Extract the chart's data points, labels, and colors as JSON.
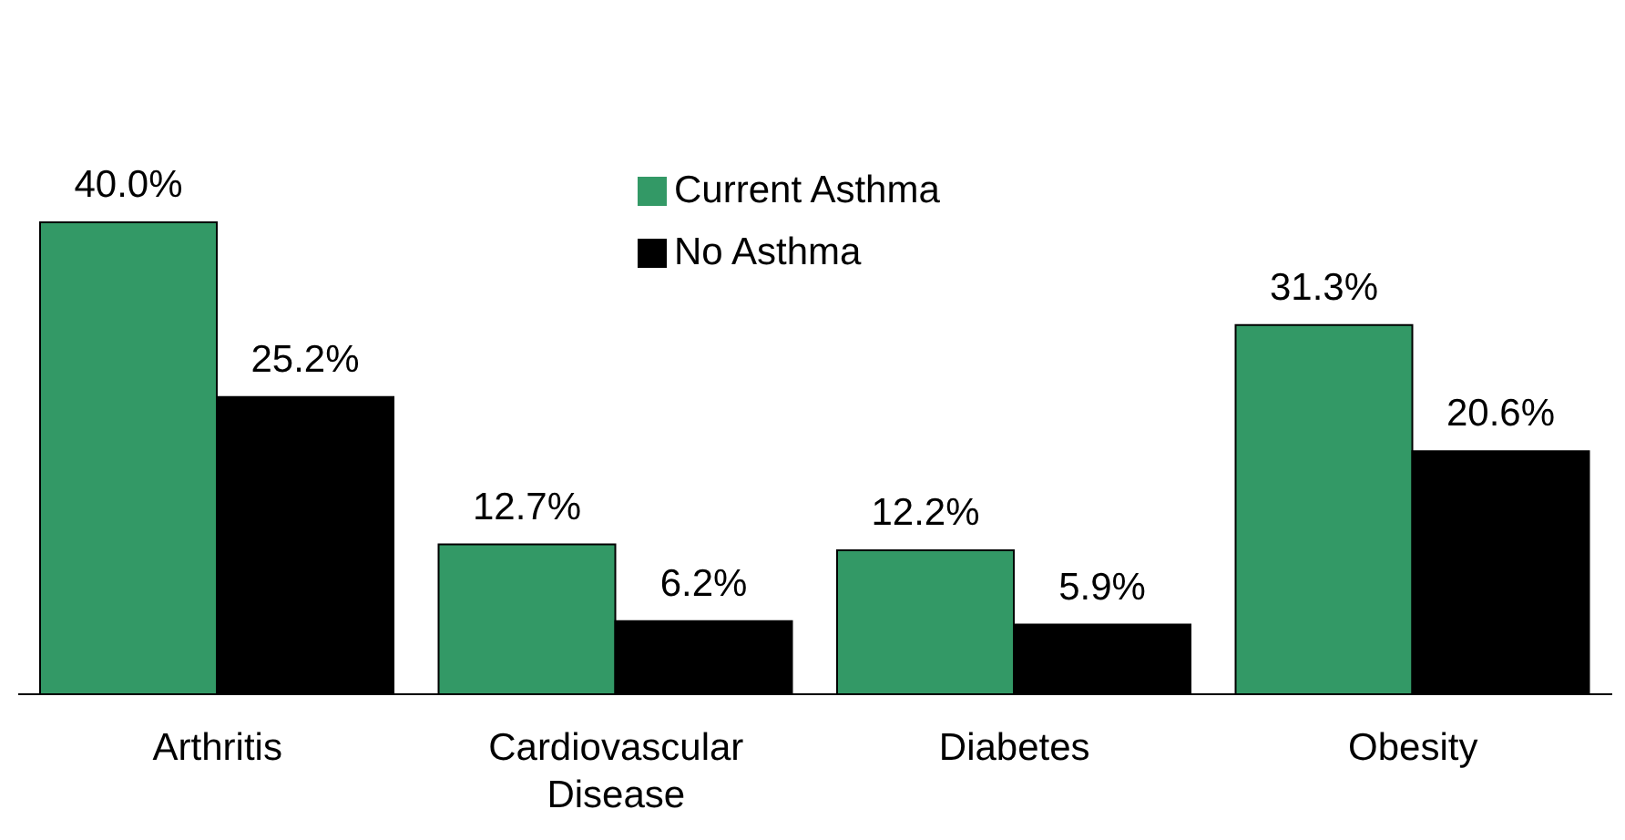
{
  "chart_data": {
    "type": "bar",
    "categories": [
      "Arthritis",
      "Cardiovascular Disease",
      "Diabetes",
      "Obesity"
    ],
    "series": [
      {
        "name": "Current Asthma",
        "color": "#339966",
        "values": [
          40.0,
          12.7,
          12.2,
          31.3
        ],
        "value_labels": [
          "40.0%",
          "12.7%",
          "12.2%",
          "31.3%"
        ]
      },
      {
        "name": "No Asthma",
        "color": "#000000",
        "values": [
          25.2,
          6.2,
          5.9,
          20.6
        ],
        "value_labels": [
          "25.2%",
          "6.2%",
          "5.9%",
          "20.6%"
        ]
      }
    ],
    "legend": "top center"
  }
}
